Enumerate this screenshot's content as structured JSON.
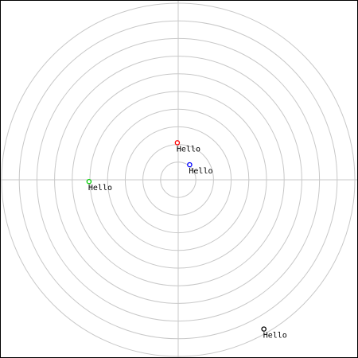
{
  "grid": {
    "ring_count": 10,
    "ring_color": "#c8c8c8",
    "axis_color": "#c8c8c8",
    "background": "#ffffff",
    "border_color": "#000000"
  },
  "points": [
    {
      "id": "red",
      "label": "Hello",
      "color": "#ff0000",
      "x": -0.005,
      "y": 0.21
    },
    {
      "id": "blue",
      "label": "Hello",
      "color": "#0000ff",
      "x": 0.065,
      "y": 0.085
    },
    {
      "id": "green",
      "label": "Hello",
      "color": "#00cc00",
      "x": -0.505,
      "y": -0.01
    },
    {
      "id": "black",
      "label": "Hello",
      "color": "#000000",
      "x": 0.485,
      "y": -0.845
    }
  ]
}
